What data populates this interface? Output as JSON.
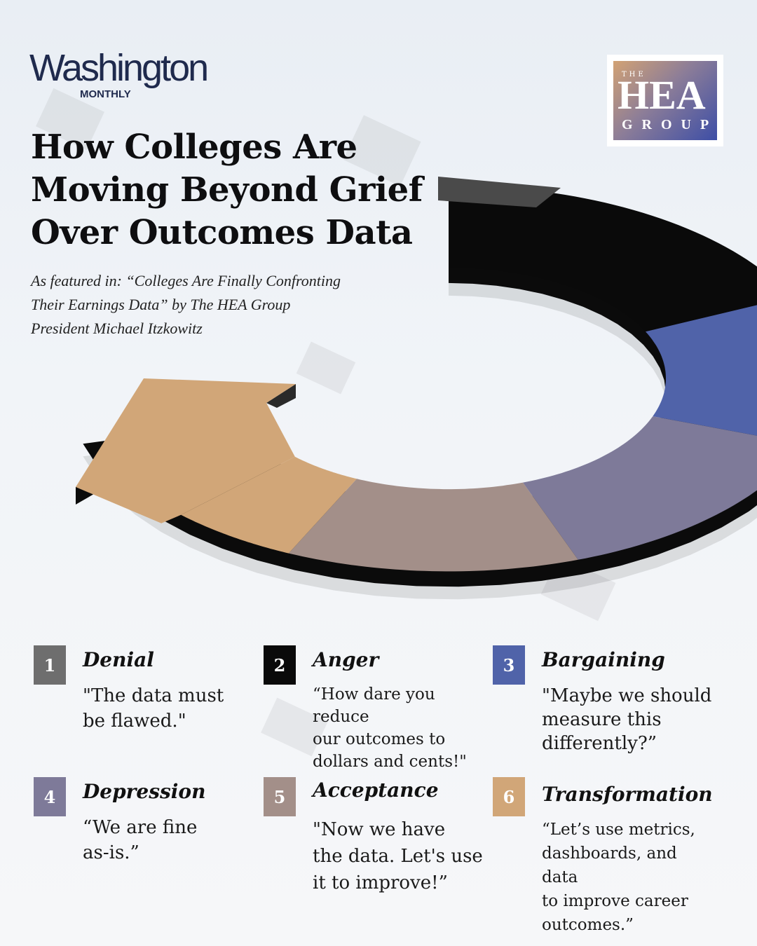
{
  "brand": {
    "publication": "Washington",
    "publication_sub": "MONTHLY",
    "partner_the": "THE",
    "partner_main": "HEA",
    "partner_group": "GROUP"
  },
  "title": {
    "line1": "How Colleges Are",
    "line2": "Moving Beyond Grief",
    "line3": "Over Outcomes Data"
  },
  "subtitle": {
    "line1": "As featured in: “Colleges Are Finally Confronting",
    "line2": "Their Earnings Data” by The HEA Group",
    "line3": "President Michael Itzkowitz"
  },
  "colors": {
    "denial": "#6e6e6e",
    "anger": "#0a0a0a",
    "bargaining": "#5063a9",
    "depression": "#7e7a99",
    "acceptance": "#a38f89",
    "transformation": "#d1a678"
  },
  "stages": [
    {
      "number": "1",
      "name": "Denial",
      "quote_lines": [
        "\"The data must",
        "be flawed.\""
      ]
    },
    {
      "number": "2",
      "name": "Anger",
      "quote_lines": [
        "“How dare you reduce",
        "our outcomes to",
        "dollars and cents!\""
      ]
    },
    {
      "number": "3",
      "name": "Bargaining",
      "quote_lines": [
        "\"Maybe we should",
        "measure this",
        "differently?”"
      ]
    },
    {
      "number": "4",
      "name": "Depression",
      "quote_lines": [
        "“We are fine",
        "as-is.”"
      ]
    },
    {
      "number": "5",
      "name": "Acceptance",
      "quote_lines": [
        "\"Now we have",
        "the data. Let's use",
        "it to improve!”"
      ]
    },
    {
      "number": "6",
      "name": "Transformation",
      "quote_lines": [
        "“Let’s use metrics,",
        "dashboards, and data",
        "to improve career",
        "outcomes.”"
      ]
    }
  ]
}
